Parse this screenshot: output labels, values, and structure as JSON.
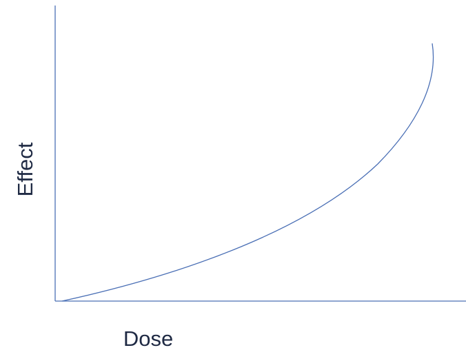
{
  "x_label": "Dose",
  "y_label": "Effect"
}
